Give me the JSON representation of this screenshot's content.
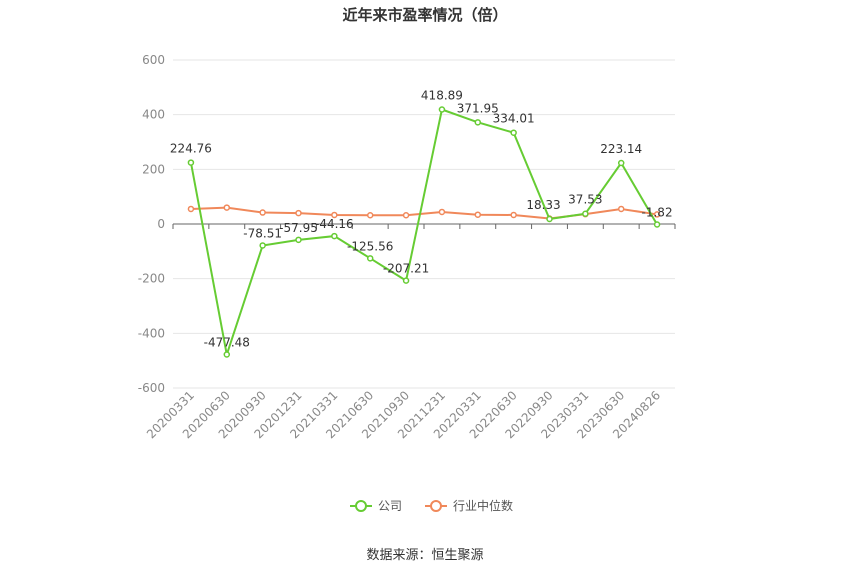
{
  "chart_data": {
    "type": "line",
    "title": "近年来市盈率情况（倍）",
    "xlabel": "",
    "ylabel": "",
    "ylim": [
      -600,
      600
    ],
    "yticks": [
      600,
      400,
      200,
      0,
      -200,
      -400,
      -600
    ],
    "categories": [
      "20200331",
      "20200630",
      "20200930",
      "20201231",
      "20210331",
      "20210630",
      "20210930",
      "20211231",
      "20220331",
      "20220630",
      "20220930",
      "20230331",
      "20230630",
      "20240826"
    ],
    "grid": true,
    "legend_position": "bottom",
    "series": [
      {
        "name": "公司",
        "color": "#66cc33",
        "values": [
          224.76,
          -477.48,
          -78.51,
          -57.95,
          -44.16,
          -125.56,
          -207.21,
          418.89,
          371.95,
          334.01,
          18.33,
          37.53,
          223.14,
          -1.82
        ],
        "labels": [
          "224.76",
          "-477.48",
          "-78.51",
          "-57.95",
          "-44.16",
          "-125.56",
          "-207.21",
          "418.89",
          "371.95",
          "334.01",
          "18.33",
          "37.53",
          "223.14",
          "-1.82"
        ]
      },
      {
        "name": "行业中位数",
        "color": "#f0885a",
        "values": [
          55,
          60,
          42,
          40,
          33,
          32,
          32,
          44,
          34,
          33,
          20,
          36,
          55,
          35
        ]
      }
    ]
  },
  "source": "数据来源：恒生聚源"
}
